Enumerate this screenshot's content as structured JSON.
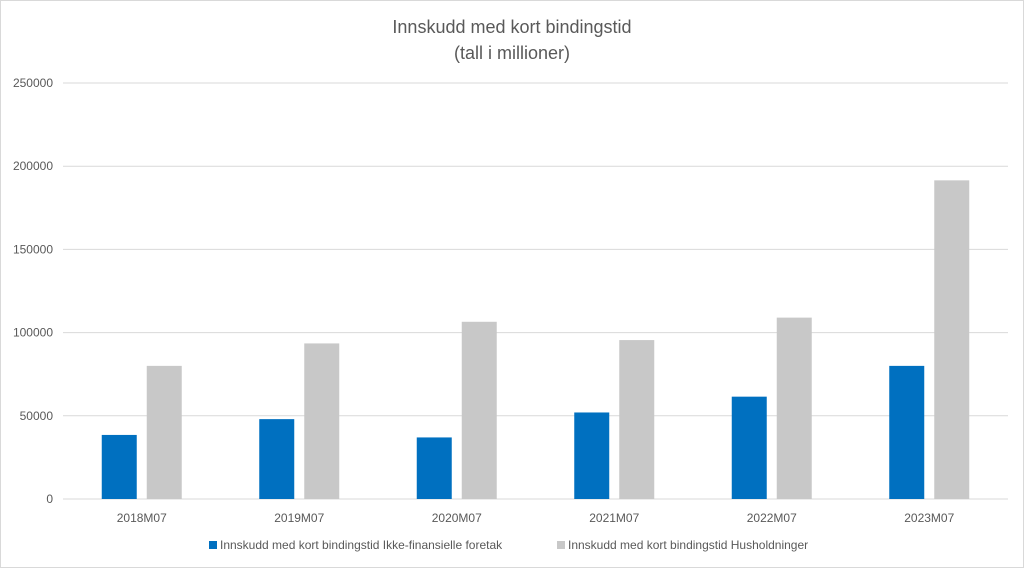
{
  "chart_data": {
    "type": "bar",
    "title": "Innskudd med kort bindingstid",
    "subtitle": "(tall i millioner)",
    "xlabel": "",
    "ylabel": "",
    "categories": [
      "2018M07",
      "2019M07",
      "2020M07",
      "2021M07",
      "2022M07",
      "2023M07"
    ],
    "series": [
      {
        "name": "Innskudd med kort bindingstid Ikke-finansielle foretak",
        "color": "#0070c0",
        "values": [
          38500,
          48000,
          37000,
          52000,
          61500,
          80000
        ]
      },
      {
        "name": "Innskudd med kort bindingstid Husholdninger",
        "color": "#c8c8c8",
        "values": [
          80000,
          93500,
          106500,
          95500,
          109000,
          191500
        ]
      }
    ],
    "ylim": [
      0,
      250000
    ],
    "yticks": [
      "0",
      "50000",
      "100000",
      "150000",
      "200000",
      "250000"
    ],
    "grid": true,
    "legend_position": "bottom"
  }
}
